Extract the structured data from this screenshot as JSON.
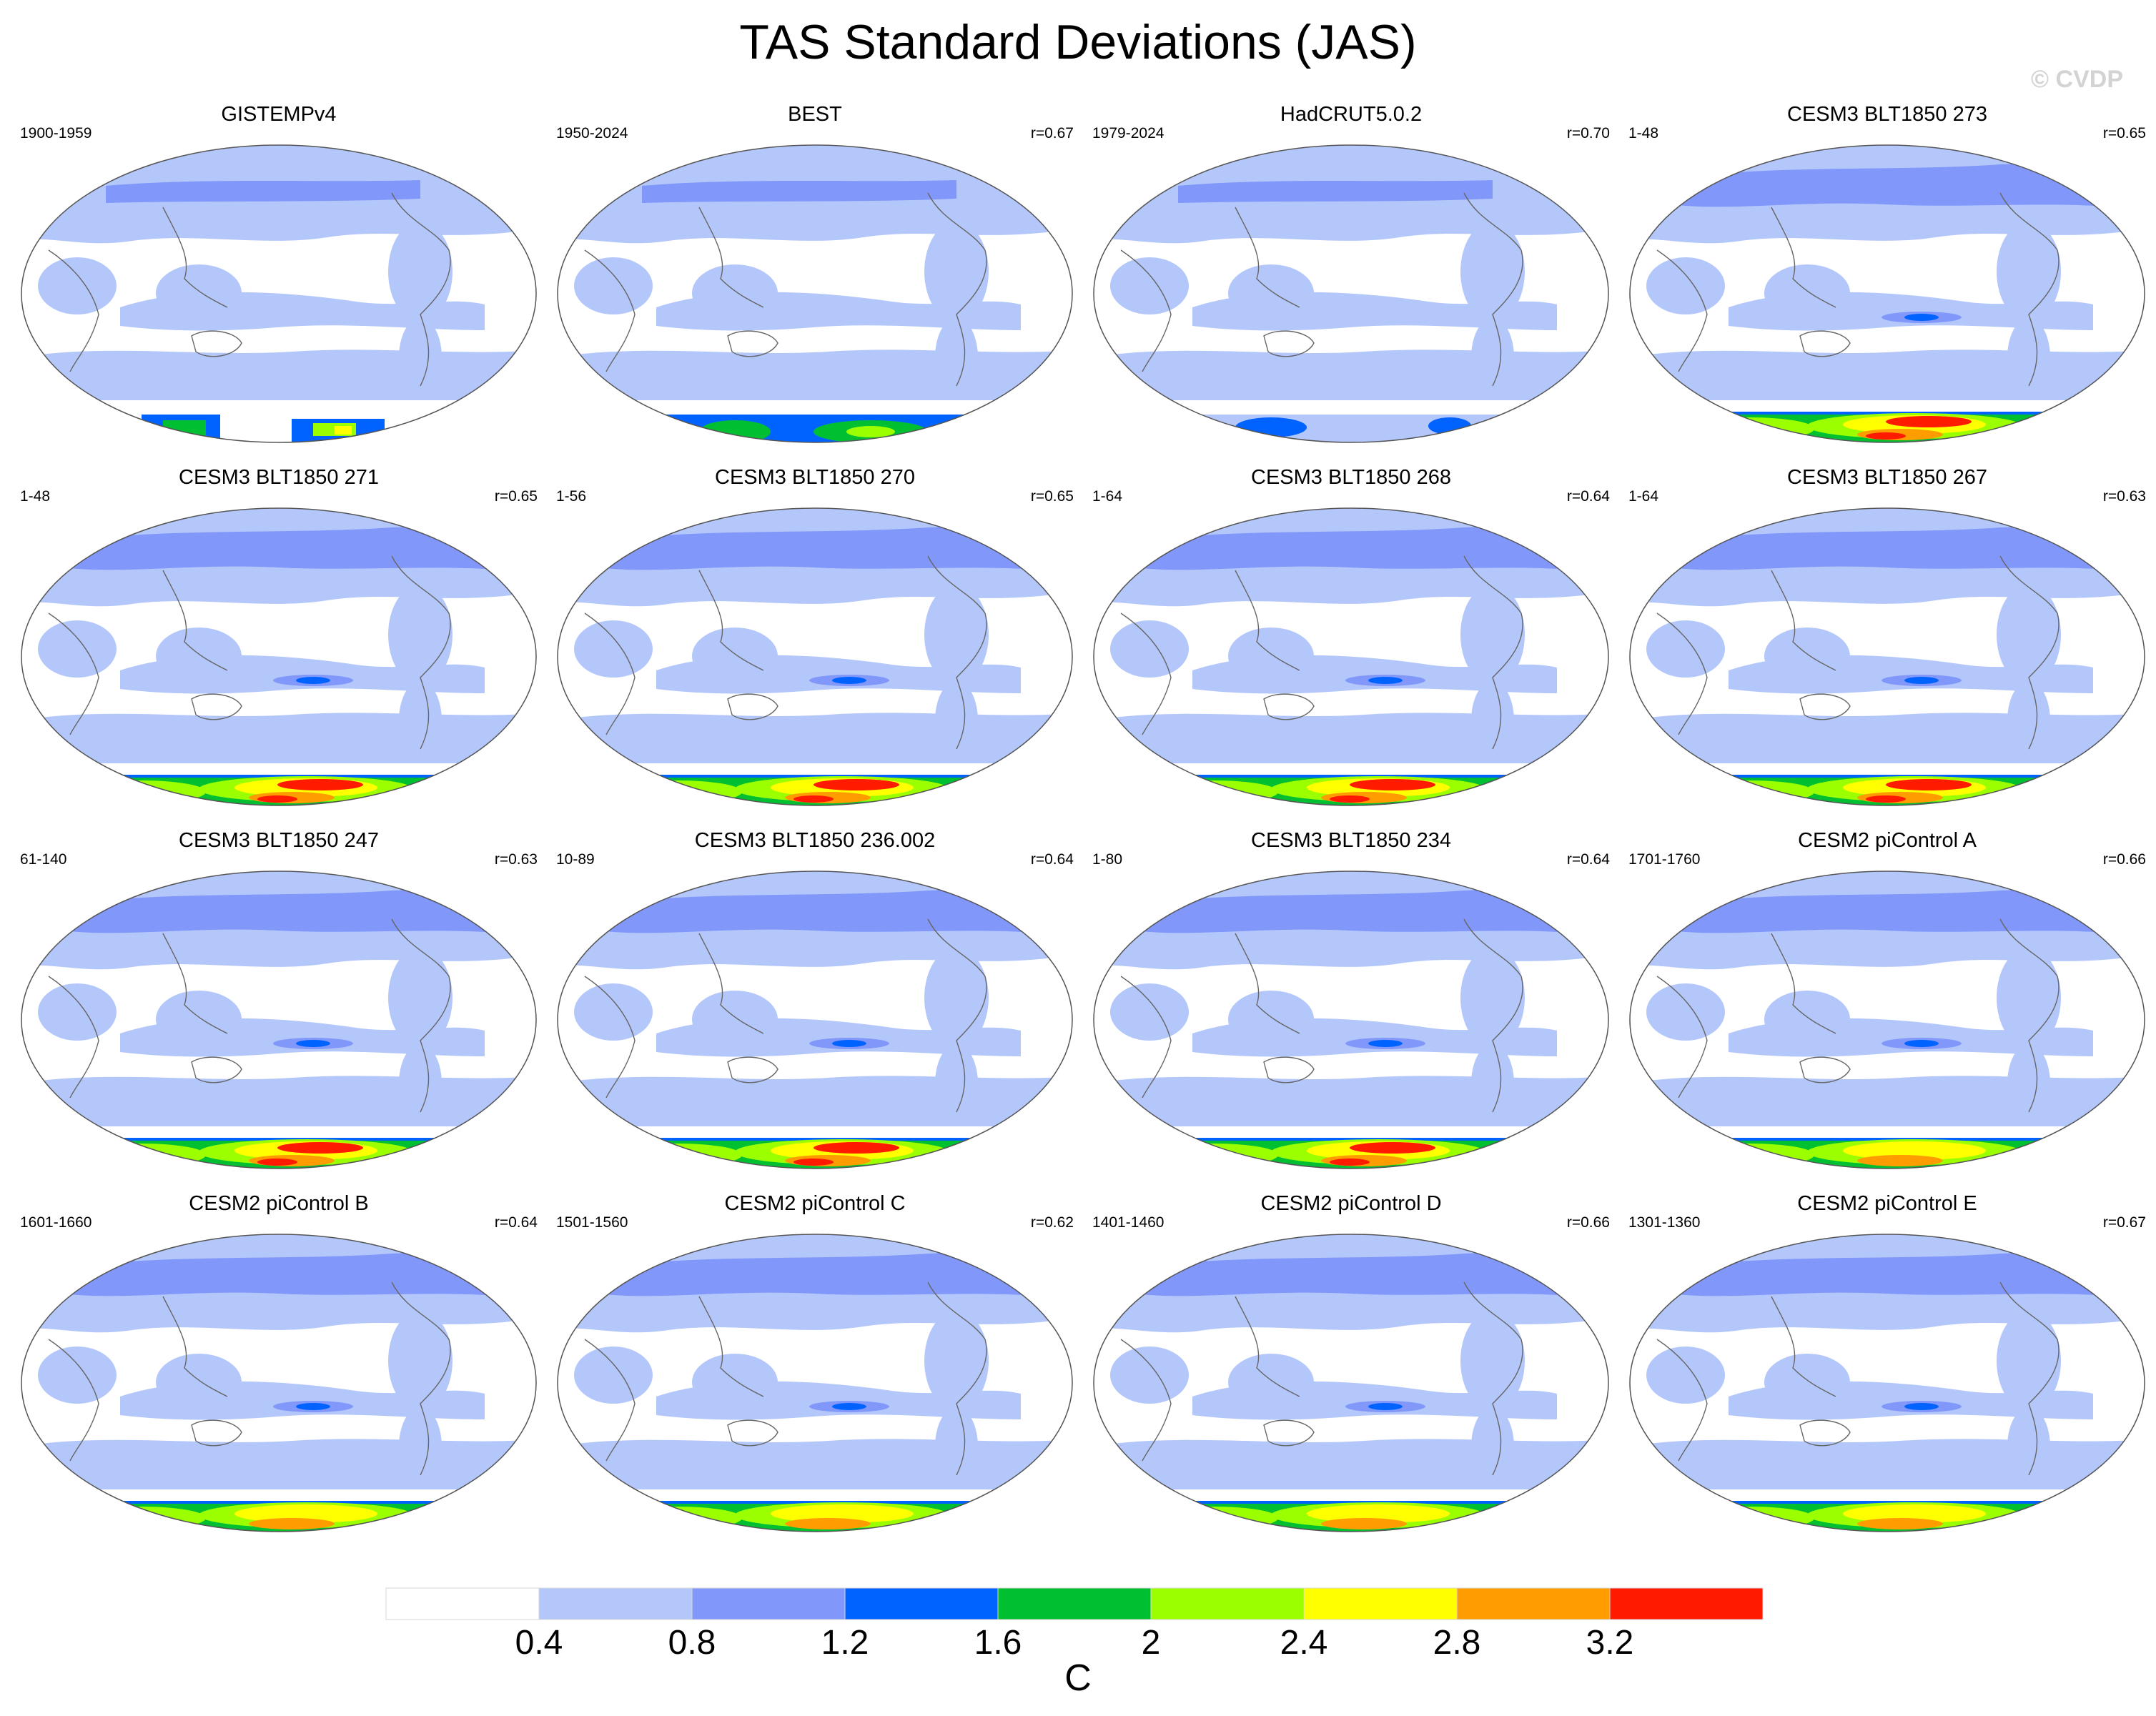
{
  "chart_data": {
    "type": "heatmap",
    "title": "TAS Standard Deviations (JAS)",
    "watermark": "© CVDP",
    "units": "C",
    "colorbar": {
      "levels": [
        "0.4",
        "0.8",
        "1.2",
        "1.6",
        "2",
        "2.4",
        "2.8",
        "3.2"
      ],
      "colors": [
        "#ffffff",
        "#b4c7fb",
        "#8198fa",
        "#0062ff",
        "#00c032",
        "#9bff00",
        "#ffff00",
        "#ff9d00",
        "#ff1a00"
      ]
    },
    "panels": [
      {
        "title": "GISTEMPv4",
        "period": "1900-1959",
        "r": "",
        "antarctic": "partial"
      },
      {
        "title": "BEST",
        "period": "1950-2024",
        "r": "r=0.67",
        "antarctic": "obs"
      },
      {
        "title": "HadCRUT5.0.2",
        "period": "1979-2024",
        "r": "r=0.70",
        "antarctic": "obs-weak"
      },
      {
        "title": "CESM3 BLT1850 273",
        "period": "1-48",
        "r": "r=0.65",
        "antarctic": "strong"
      },
      {
        "title": "CESM3 BLT1850 271",
        "period": "1-48",
        "r": "r=0.65",
        "antarctic": "strong"
      },
      {
        "title": "CESM3 BLT1850 270",
        "period": "1-56",
        "r": "r=0.65",
        "antarctic": "strong"
      },
      {
        "title": "CESM3 BLT1850 268",
        "period": "1-64",
        "r": "r=0.64",
        "antarctic": "strong"
      },
      {
        "title": "CESM3 BLT1850 267",
        "period": "1-64",
        "r": "r=0.63",
        "antarctic": "strong"
      },
      {
        "title": "CESM3 BLT1850 247",
        "period": "61-140",
        "r": "r=0.63",
        "antarctic": "strong"
      },
      {
        "title": "CESM3 BLT1850 236.002",
        "period": "10-89",
        "r": "r=0.64",
        "antarctic": "strong"
      },
      {
        "title": "CESM3 BLT1850 234",
        "period": "1-80",
        "r": "r=0.64",
        "antarctic": "strong"
      },
      {
        "title": "CESM2 piControl A",
        "period": "1701-1760",
        "r": "r=0.66",
        "antarctic": "medium"
      },
      {
        "title": "CESM2 piControl B",
        "period": "1601-1660",
        "r": "r=0.64",
        "antarctic": "medium"
      },
      {
        "title": "CESM2 piControl C",
        "period": "1501-1560",
        "r": "r=0.62",
        "antarctic": "medium"
      },
      {
        "title": "CESM2 piControl D",
        "period": "1401-1460",
        "r": "r=0.66",
        "antarctic": "medium"
      },
      {
        "title": "CESM2 piControl E",
        "period": "1301-1360",
        "r": "r=0.67",
        "antarctic": "medium"
      }
    ]
  }
}
